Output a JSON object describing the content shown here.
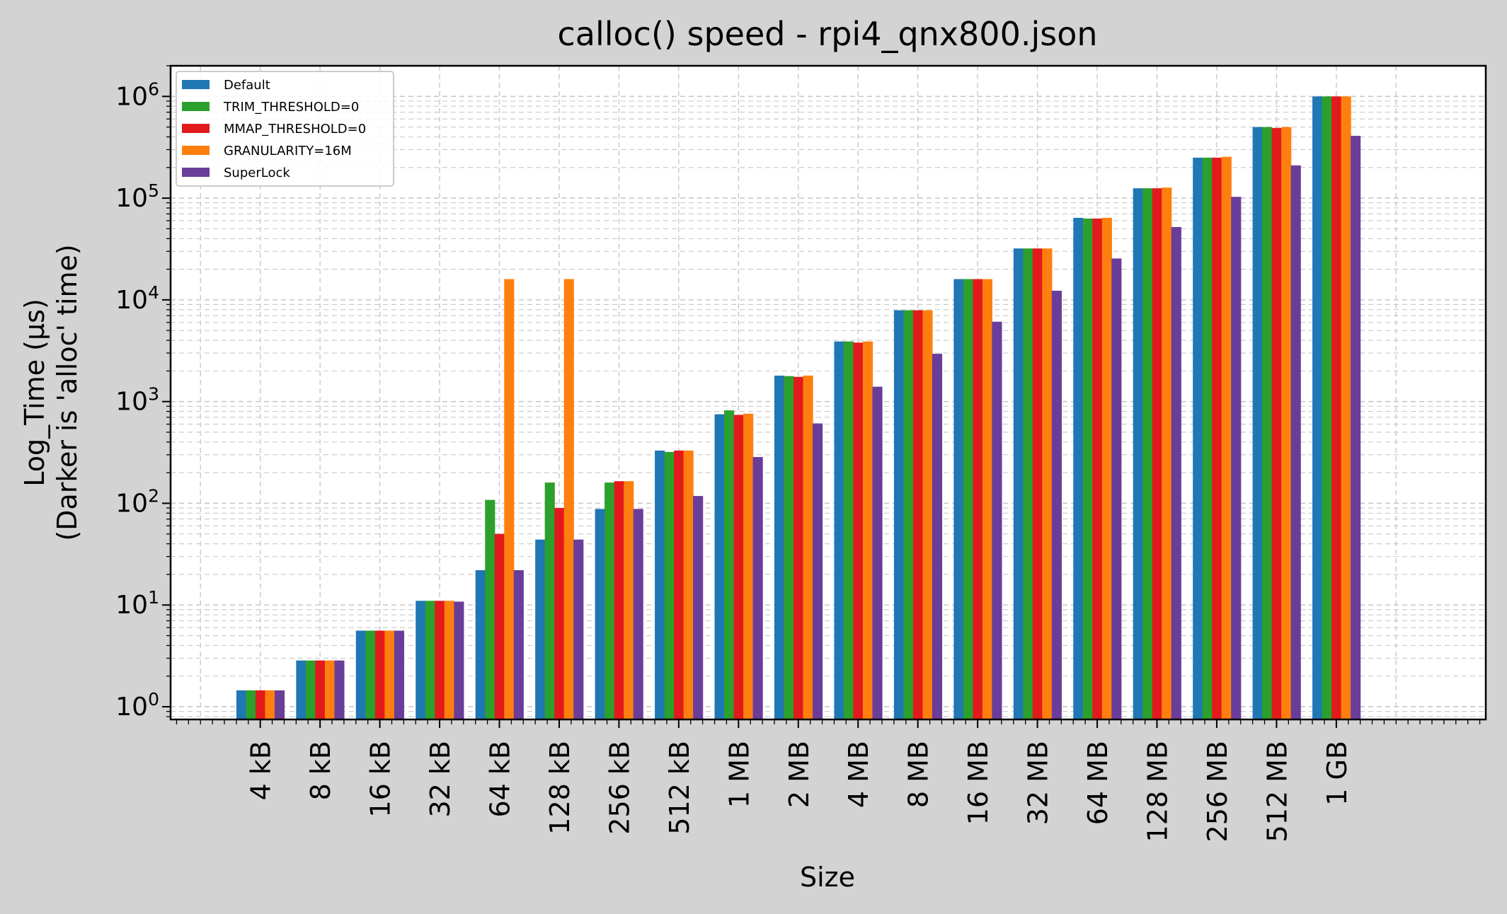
{
  "chart_data": {
    "type": "bar",
    "title": "calloc() speed - rpi4_qnx800.json",
    "xlabel": "Size",
    "ylabel_line1": "Log_Time (µs)",
    "ylabel_line2": "(Darker is 'alloc' time)",
    "yscale": "log",
    "ylim": [
      0.75,
      2000000
    ],
    "grid": true,
    "legend_position": "top-left",
    "categories": [
      "4 kB",
      "8 kB",
      "16 kB",
      "32 kB",
      "64 kB",
      "128 kB",
      "256 kB",
      "512 kB",
      "1 MB",
      "2 MB",
      "4 MB",
      "8 MB",
      "16 MB",
      "32 MB",
      "64 MB",
      "128 MB",
      "256 MB",
      "512 MB",
      "1 GB"
    ],
    "y_ticks": [
      {
        "base": "10",
        "exp": "0",
        "value": 1
      },
      {
        "base": "10",
        "exp": "1",
        "value": 10
      },
      {
        "base": "10",
        "exp": "2",
        "value": 100
      },
      {
        "base": "10",
        "exp": "3",
        "value": 1000
      },
      {
        "base": "10",
        "exp": "4",
        "value": 10000
      },
      {
        "base": "10",
        "exp": "5",
        "value": 100000
      },
      {
        "base": "10",
        "exp": "6",
        "value": 1000000
      }
    ],
    "series": [
      {
        "name": "Default",
        "color": "#1f77b4",
        "values": [
          1.45,
          2.85,
          5.6,
          11,
          22,
          44,
          88,
          330,
          750,
          1800,
          3900,
          7900,
          16000,
          32000,
          64000,
          125000,
          250000,
          500000,
          1000000
        ]
      },
      {
        "name": "TRIM_THRESHOLD=0",
        "color": "#2ca02c",
        "values": [
          1.45,
          2.85,
          5.6,
          11,
          108,
          160,
          160,
          320,
          820,
          1780,
          3900,
          7900,
          16000,
          32000,
          63000,
          125000,
          250000,
          500000,
          1000000
        ]
      },
      {
        "name": "MMAP_THRESHOLD=0",
        "color": "#e31a1c",
        "values": [
          1.45,
          2.85,
          5.6,
          11,
          50,
          90,
          165,
          330,
          740,
          1750,
          3800,
          7900,
          16000,
          32000,
          63000,
          125000,
          250000,
          490000,
          1000000
        ]
      },
      {
        "name": "GRANULARITY=16M",
        "color": "#ff7f0e",
        "values": [
          1.45,
          2.85,
          5.6,
          11,
          16000,
          16000,
          165,
          330,
          760,
          1800,
          3900,
          7900,
          16000,
          32000,
          64000,
          127000,
          255000,
          500000,
          1000000
        ]
      },
      {
        "name": "SuperLock",
        "color": "#6a3d9a",
        "values": [
          1.45,
          2.85,
          5.6,
          10.8,
          22,
          44,
          88,
          118,
          285,
          610,
          1400,
          2950,
          6100,
          12300,
          25500,
          52000,
          103000,
          210000,
          410000
        ]
      }
    ]
  }
}
